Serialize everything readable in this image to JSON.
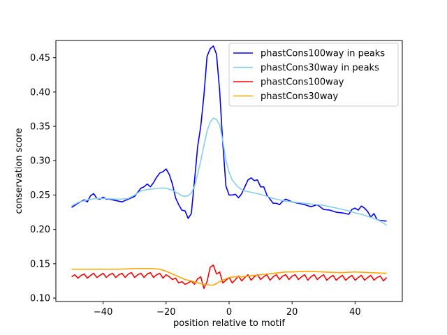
{
  "chart_data": {
    "type": "line",
    "title": "",
    "xlabel": "position relative to motif",
    "ylabel": "conservation score",
    "xlim": [
      -55,
      55
    ],
    "ylim": [
      0.095,
      0.475
    ],
    "xticks": [
      -40,
      -20,
      0,
      20,
      40
    ],
    "yticks": [
      0.1,
      0.15,
      0.2,
      0.25,
      0.3,
      0.35,
      0.4,
      0.45
    ],
    "ytick_labels": [
      "0.10",
      "0.15",
      "0.20",
      "0.25",
      "0.30",
      "0.35",
      "0.40",
      "0.45"
    ],
    "grid": false,
    "legend": "top-right",
    "series": [
      {
        "name": "phastCons100way in peaks",
        "color": "#0000ff",
        "x": [
          -50,
          -48,
          -46,
          -45,
          -44,
          -43,
          -42,
          -41,
          -40,
          -39,
          -38,
          -36,
          -34,
          -33,
          -31,
          -30,
          -28,
          -27,
          -26,
          -25,
          -24,
          -23,
          -22,
          -21,
          -20,
          -19,
          -18,
          -17,
          -16,
          -15,
          -14,
          -13,
          -12,
          -11,
          -10,
          -9,
          -8,
          -7,
          -6,
          -5,
          -4,
          -3,
          -2,
          -1,
          0,
          1,
          2,
          3,
          4,
          5,
          6,
          7,
          8,
          9,
          10,
          11,
          12,
          13,
          14,
          15,
          16,
          17,
          18,
          19,
          20,
          22,
          24,
          26,
          28,
          30,
          32,
          34,
          36,
          38,
          39,
          40,
          41,
          42,
          43,
          44,
          45,
          46,
          47,
          48,
          50
        ],
        "y": [
          0.232,
          0.238,
          0.243,
          0.24,
          0.249,
          0.252,
          0.245,
          0.244,
          0.247,
          0.244,
          0.244,
          0.242,
          0.24,
          0.242,
          0.246,
          0.248,
          0.26,
          0.262,
          0.266,
          0.262,
          0.268,
          0.276,
          0.282,
          0.284,
          0.288,
          0.28,
          0.266,
          0.246,
          0.236,
          0.228,
          0.227,
          0.216,
          0.223,
          0.27,
          0.32,
          0.35,
          0.395,
          0.452,
          0.463,
          0.467,
          0.455,
          0.402,
          0.325,
          0.263,
          0.25,
          0.25,
          0.251,
          0.246,
          0.252,
          0.262,
          0.272,
          0.275,
          0.271,
          0.272,
          0.262,
          0.262,
          0.25,
          0.244,
          0.238,
          0.238,
          0.236,
          0.241,
          0.244,
          0.242,
          0.24,
          0.238,
          0.236,
          0.233,
          0.236,
          0.229,
          0.228,
          0.225,
          0.224,
          0.222,
          0.229,
          0.231,
          0.228,
          0.234,
          0.231,
          0.226,
          0.218,
          0.223,
          0.214,
          0.213,
          0.212
        ]
      },
      {
        "name": "phastCons30way in peaks",
        "color": "#87ceeb",
        "x": [
          -50,
          -48,
          -45,
          -42,
          -40,
          -36,
          -34,
          -32,
          -30,
          -28,
          -26,
          -24,
          -22,
          -20,
          -18,
          -16,
          -15,
          -14,
          -13,
          -12,
          -11,
          -10,
          -9,
          -8,
          -7,
          -6,
          -5,
          -4,
          -3,
          -2,
          -1,
          0,
          1,
          2,
          3,
          4,
          5,
          6,
          8,
          10,
          12,
          14,
          16,
          18,
          20,
          22,
          24,
          26,
          28,
          30,
          32,
          34,
          36,
          38,
          40,
          42,
          44,
          46,
          48,
          50
        ],
        "y": [
          0.234,
          0.239,
          0.243,
          0.245,
          0.245,
          0.244,
          0.244,
          0.245,
          0.25,
          0.256,
          0.258,
          0.259,
          0.26,
          0.26,
          0.257,
          0.252,
          0.249,
          0.248,
          0.249,
          0.253,
          0.262,
          0.28,
          0.3,
          0.322,
          0.343,
          0.356,
          0.362,
          0.36,
          0.352,
          0.329,
          0.3,
          0.283,
          0.272,
          0.266,
          0.261,
          0.258,
          0.256,
          0.255,
          0.253,
          0.251,
          0.248,
          0.245,
          0.243,
          0.241,
          0.24,
          0.239,
          0.238,
          0.237,
          0.236,
          0.235,
          0.233,
          0.231,
          0.229,
          0.227,
          0.224,
          0.222,
          0.219,
          0.216,
          0.212,
          0.206
        ]
      },
      {
        "name": "phastCons100way",
        "color": "#ff0000",
        "x": [
          -50,
          -49,
          -48,
          -47,
          -46,
          -45,
          -44,
          -43,
          -42,
          -41,
          -40,
          -39,
          -38,
          -37,
          -36,
          -35,
          -34,
          -33,
          -32,
          -31,
          -30,
          -29,
          -28,
          -27,
          -26,
          -25,
          -24,
          -23,
          -22,
          -21,
          -20,
          -19,
          -18,
          -17,
          -16,
          -15,
          -14,
          -13,
          -12,
          -11,
          -10,
          -9,
          -8,
          -7,
          -6,
          -5,
          -4,
          -3,
          -2,
          -1,
          0,
          1,
          2,
          3,
          4,
          5,
          6,
          7,
          8,
          9,
          10,
          11,
          12,
          13,
          14,
          15,
          16,
          17,
          18,
          19,
          20,
          21,
          22,
          23,
          24,
          25,
          26,
          27,
          28,
          29,
          30,
          31,
          32,
          33,
          34,
          35,
          36,
          37,
          38,
          39,
          40,
          41,
          42,
          43,
          44,
          45,
          46,
          47,
          48,
          49,
          50
        ],
        "y": [
          0.131,
          0.134,
          0.129,
          0.133,
          0.135,
          0.129,
          0.133,
          0.136,
          0.13,
          0.133,
          0.136,
          0.13,
          0.134,
          0.136,
          0.13,
          0.134,
          0.136,
          0.13,
          0.135,
          0.137,
          0.13,
          0.134,
          0.136,
          0.13,
          0.135,
          0.137,
          0.13,
          0.134,
          0.136,
          0.129,
          0.134,
          0.131,
          0.127,
          0.129,
          0.122,
          0.124,
          0.12,
          0.122,
          0.125,
          0.12,
          0.128,
          0.131,
          0.114,
          0.124,
          0.145,
          0.148,
          0.135,
          0.138,
          0.122,
          0.126,
          0.13,
          0.122,
          0.127,
          0.132,
          0.125,
          0.13,
          0.134,
          0.126,
          0.131,
          0.134,
          0.127,
          0.131,
          0.134,
          0.126,
          0.131,
          0.134,
          0.127,
          0.132,
          0.134,
          0.127,
          0.132,
          0.134,
          0.127,
          0.131,
          0.134,
          0.126,
          0.131,
          0.134,
          0.127,
          0.131,
          0.134,
          0.126,
          0.13,
          0.133,
          0.126,
          0.13,
          0.133,
          0.126,
          0.13,
          0.133,
          0.126,
          0.13,
          0.133,
          0.126,
          0.13,
          0.133,
          0.126,
          0.13,
          0.132,
          0.125,
          0.13
        ]
      },
      {
        "name": "phastCons30way",
        "color": "#ffa500",
        "x": [
          -50,
          -45,
          -40,
          -35,
          -30,
          -25,
          -22,
          -20,
          -18,
          -16,
          -14,
          -12,
          -10,
          -8,
          -6,
          -5,
          -4,
          -3,
          -2,
          -1,
          0,
          2,
          4,
          6,
          8,
          10,
          12,
          14,
          16,
          18,
          20,
          25,
          30,
          35,
          40,
          45,
          50
        ],
        "y": [
          0.142,
          0.142,
          0.142,
          0.142,
          0.143,
          0.143,
          0.142,
          0.139,
          0.135,
          0.131,
          0.127,
          0.125,
          0.122,
          0.12,
          0.119,
          0.119,
          0.121,
          0.124,
          0.126,
          0.128,
          0.13,
          0.131,
          0.131,
          0.132,
          0.133,
          0.134,
          0.135,
          0.136,
          0.137,
          0.138,
          0.138,
          0.139,
          0.138,
          0.137,
          0.138,
          0.137,
          0.136
        ]
      }
    ]
  }
}
